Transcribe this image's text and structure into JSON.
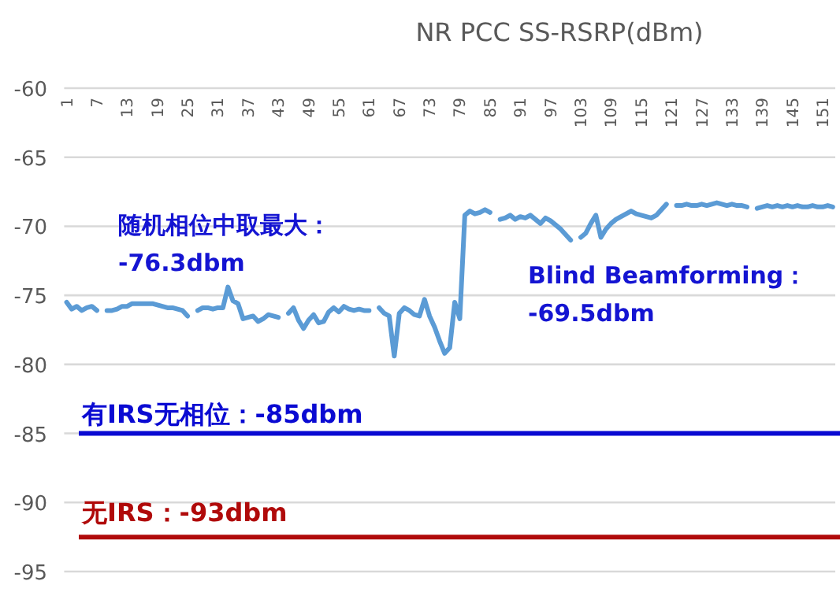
{
  "chart_data": {
    "type": "line",
    "title": "NR PCC SS-RSRP(dBm)",
    "categories": [
      "1",
      null,
      null,
      null,
      null,
      null,
      "7",
      null,
      null,
      null,
      null,
      null,
      "13",
      null,
      null,
      null,
      null,
      null,
      "19",
      null,
      null,
      null,
      null,
      null,
      "25",
      null,
      null,
      null,
      null,
      null,
      "31",
      null,
      null,
      null,
      null,
      null,
      "37",
      null,
      null,
      null,
      null,
      null,
      "43",
      null,
      null,
      null,
      null,
      null,
      "49",
      null,
      null,
      null,
      null,
      null,
      "55",
      null,
      null,
      null,
      null,
      null,
      "61",
      null,
      null,
      null,
      null,
      null,
      "67",
      null,
      null,
      null,
      null,
      null,
      "73",
      null,
      null,
      null,
      null,
      null,
      "79",
      null,
      null,
      null,
      null,
      null,
      "85",
      null,
      null,
      null,
      null,
      null,
      "91",
      null,
      null,
      null,
      null,
      null,
      "97",
      null,
      null,
      null,
      null,
      null,
      "103",
      null,
      null,
      null,
      null,
      null,
      "109",
      null,
      null,
      null,
      null,
      null,
      "115",
      null,
      null,
      null,
      null,
      null,
      "121",
      null,
      null,
      null,
      null,
      null,
      "127",
      null,
      null,
      null,
      null,
      null,
      "133",
      null,
      null,
      null,
      null,
      null,
      "139",
      null,
      null,
      null,
      null,
      null,
      "145",
      null,
      null,
      null,
      null,
      null,
      "151",
      null,
      null
    ],
    "series": [
      {
        "color": "#5b9bd5",
        "values": [
          -75.5,
          -76.0,
          -75.8,
          -76.1,
          -75.9,
          -75.8,
          -76.1,
          null,
          -76.1,
          -76.1,
          -76.0,
          -75.8,
          -75.8,
          -75.6,
          -75.6,
          -75.6,
          -75.6,
          -75.6,
          -75.7,
          -75.8,
          -75.9,
          -75.9,
          -76.0,
          -76.1,
          -76.5,
          null,
          -76.1,
          -75.9,
          -75.9,
          -76.0,
          -75.9,
          -75.9,
          -74.4,
          -75.4,
          -75.6,
          -76.7,
          -76.6,
          -76.5,
          -76.9,
          -76.7,
          -76.4,
          -76.5,
          -76.6,
          null,
          -76.3,
          -75.9,
          -76.8,
          -77.4,
          -76.8,
          -76.4,
          -77.0,
          -76.9,
          -76.2,
          -75.9,
          -76.2,
          -75.8,
          -76.0,
          -76.1,
          -76.0,
          -76.1,
          -76.1,
          null,
          -75.9,
          -76.3,
          -76.5,
          -79.4,
          -76.3,
          -75.9,
          -76.1,
          -76.4,
          -76.5,
          -75.3,
          -76.5,
          -77.3,
          -78.3,
          -79.2,
          -78.8,
          -75.5,
          -76.7,
          -69.2,
          -68.9,
          -69.1,
          -69.0,
          -68.8,
          -69.0,
          null,
          -69.5,
          -69.4,
          -69.2,
          -69.5,
          -69.3,
          -69.4,
          -69.2,
          -69.5,
          -69.8,
          -69.4,
          -69.6,
          -69.9,
          -70.2,
          -70.6,
          -71.0,
          null,
          -70.8,
          -70.5,
          -69.8,
          -69.2,
          -70.8,
          -70.2,
          -69.8,
          -69.5,
          -69.3,
          -69.1,
          -68.9,
          -69.1,
          -69.2,
          -69.3,
          -69.4,
          -69.2,
          -68.8,
          -68.4,
          null,
          -68.5,
          -68.5,
          -68.4,
          -68.5,
          -68.5,
          -68.4,
          -68.5,
          -68.4,
          -68.3,
          -68.4,
          -68.5,
          -68.4,
          -68.5,
          -68.5,
          -68.6,
          null,
          -68.7,
          -68.6,
          -68.5,
          -68.6,
          -68.5,
          -68.6,
          -68.5,
          -68.6,
          -68.5,
          -68.6,
          -68.6,
          -68.5,
          -68.6,
          -68.6,
          -68.5,
          -68.6
        ]
      }
    ],
    "ylim": [
      -95,
      -60
    ],
    "yticks": [
      -60,
      -65,
      -70,
      -75,
      -80,
      -85,
      -90,
      -95
    ],
    "grid": "y",
    "marker": "none",
    "line_style": "solid",
    "ref_lines": [
      {
        "axis": "y",
        "value": -85,
        "label": "有IRS无相位：-85dbm",
        "color": "#0a0ad2"
      },
      {
        "axis": "y",
        "value": -92.5,
        "label": "无IRS：-93dbm",
        "color": "#b00a0a"
      }
    ],
    "annotations": [
      "随机相位中取最大：\n-76.3dbm",
      "Blind Beamforming：\n-69.5dbm"
    ]
  }
}
